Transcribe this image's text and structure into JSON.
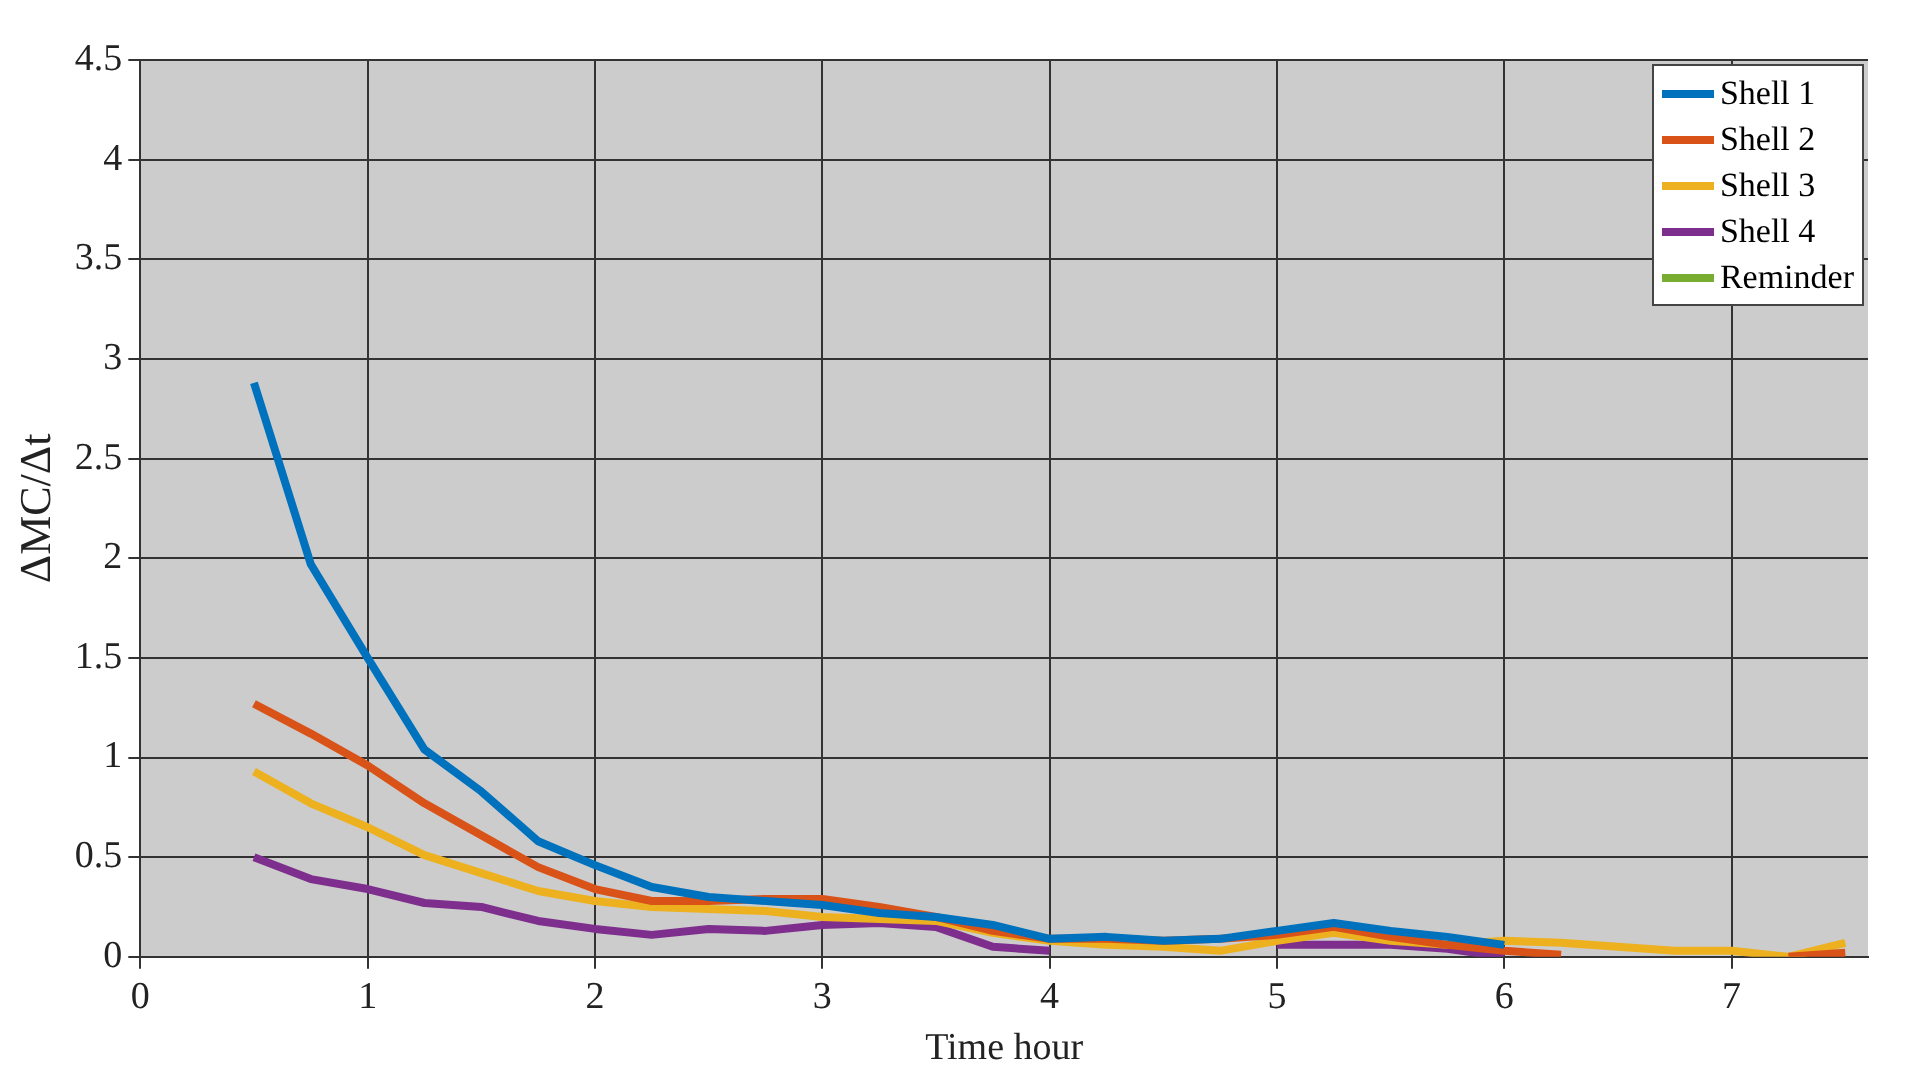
{
  "chart_data": {
    "type": "line",
    "xlabel": "Time hour",
    "ylabel": "ΔMC/Δt",
    "x": [
      0.5,
      0.75,
      1,
      1.25,
      1.5,
      1.75,
      2,
      2.25,
      2.5,
      2.75,
      3,
      3.25,
      3.5,
      3.75,
      4,
      4.25,
      4.5,
      4.75,
      5,
      5.25,
      5.5,
      5.75,
      6,
      6.25,
      6.5,
      6.75,
      7,
      7.25,
      7.5
    ],
    "series": [
      {
        "name": "Shell 1",
        "color": "#0072bd",
        "values": [
          2.88,
          1.97,
          1.5,
          1.04,
          0.83,
          0.58,
          0.46,
          0.35,
          0.3,
          0.28,
          0.26,
          0.22,
          0.2,
          0.16,
          0.09,
          0.1,
          0.08,
          0.09,
          0.13,
          0.17,
          0.13,
          0.1,
          0.06,
          null,
          null,
          null,
          null,
          null,
          null
        ]
      },
      {
        "name": "Shell 2",
        "color": "#d95319",
        "values": [
          1.27,
          1.12,
          0.96,
          0.77,
          0.61,
          0.45,
          0.34,
          0.28,
          0.28,
          0.29,
          0.29,
          0.25,
          0.2,
          0.13,
          0.09,
          0.09,
          0.08,
          0.09,
          0.11,
          0.15,
          0.1,
          0.06,
          0.03,
          0.01,
          null,
          null,
          null,
          0,
          0.02
        ]
      },
      {
        "name": "Shell 3",
        "color": "#edb120",
        "values": [
          0.93,
          0.77,
          0.65,
          0.51,
          0.42,
          0.33,
          0.28,
          0.25,
          0.24,
          0.23,
          0.2,
          0.19,
          0.18,
          0.12,
          0.08,
          0.06,
          0.05,
          0.03,
          0.08,
          0.12,
          0.08,
          0.06,
          0.08,
          0.07,
          0.05,
          0.03,
          0.03,
          0,
          0.07
        ]
      },
      {
        "name": "Shell 4",
        "color": "#7e2f8e",
        "values": [
          0.5,
          0.39,
          0.34,
          0.27,
          0.25,
          0.18,
          0.14,
          0.11,
          0.14,
          0.13,
          0.16,
          0.17,
          0.15,
          0.05,
          0.03,
          null,
          null,
          null,
          0.06,
          0.06,
          0.06,
          0.04,
          0,
          null,
          null,
          null,
          null,
          null,
          null
        ]
      },
      {
        "name": "Reminder",
        "color": "#77ac30",
        "values": [
          null,
          null,
          null,
          null,
          null,
          null,
          null,
          null,
          null,
          null,
          null,
          null,
          null,
          null,
          null,
          null,
          null,
          null,
          null,
          null,
          null,
          null,
          null,
          null,
          null,
          null,
          null,
          null,
          null
        ]
      }
    ],
    "xlim": [
      0,
      7.6
    ],
    "xticks": [
      0,
      1,
      2,
      3,
      4,
      5,
      6,
      7
    ],
    "ylim": [
      0,
      4.5
    ],
    "yticks": [
      0,
      0.5,
      1,
      1.5,
      2,
      2.5,
      3,
      3.5,
      4,
      4.5
    ],
    "grid": true,
    "legend": "top right",
    "marker": "none",
    "line_style": "solid"
  }
}
